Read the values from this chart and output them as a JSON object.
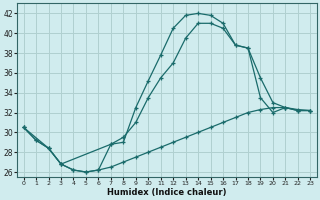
{
  "title": "",
  "xlabel": "Humidex (Indice chaleur)",
  "ylabel": "",
  "bg_color": "#d0ecee",
  "grid_color": "#b0d0d0",
  "line_color": "#1a6b6b",
  "xlim": [
    -0.5,
    23.5
  ],
  "ylim": [
    25.5,
    43.0
  ],
  "yticks": [
    26,
    28,
    30,
    32,
    34,
    36,
    38,
    40,
    42
  ],
  "xticks": [
    0,
    1,
    2,
    3,
    4,
    5,
    6,
    7,
    8,
    9,
    10,
    11,
    12,
    13,
    14,
    15,
    16,
    17,
    18,
    19,
    20,
    21,
    22,
    23
  ],
  "line1_x": [
    0,
    1,
    2,
    3,
    4,
    5,
    6,
    7,
    8,
    9,
    10,
    11,
    12,
    13,
    14,
    15,
    16,
    17,
    18,
    19,
    20,
    21,
    22,
    23
  ],
  "line1_y": [
    30.5,
    29.2,
    28.4,
    26.8,
    26.2,
    26.0,
    26.2,
    28.8,
    29.0,
    32.5,
    35.2,
    37.8,
    40.5,
    41.8,
    42.0,
    41.8,
    41.0,
    38.8,
    38.5,
    35.5,
    33.0,
    32.5,
    32.2,
    32.2
  ],
  "line2_x": [
    0,
    2,
    3,
    7,
    8,
    9,
    10,
    11,
    12,
    13,
    14,
    15,
    16,
    17,
    18,
    19,
    20,
    21,
    22,
    23
  ],
  "line2_y": [
    30.5,
    28.4,
    26.8,
    28.8,
    29.5,
    31.0,
    33.5,
    35.5,
    37.0,
    39.5,
    41.0,
    41.0,
    40.5,
    38.8,
    38.5,
    33.5,
    32.0,
    32.5,
    32.2,
    32.2
  ],
  "line3_x": [
    0,
    1,
    2,
    3,
    4,
    5,
    6,
    7,
    8,
    9,
    10,
    11,
    12,
    13,
    14,
    15,
    16,
    17,
    18,
    19,
    20,
    21,
    22,
    23
  ],
  "line3_y": [
    30.5,
    29.2,
    28.4,
    26.8,
    26.2,
    26.0,
    26.2,
    26.5,
    27.0,
    27.5,
    28.0,
    28.5,
    29.0,
    29.5,
    30.0,
    30.5,
    31.0,
    31.5,
    32.0,
    32.3,
    32.5,
    32.5,
    32.3,
    32.2
  ]
}
